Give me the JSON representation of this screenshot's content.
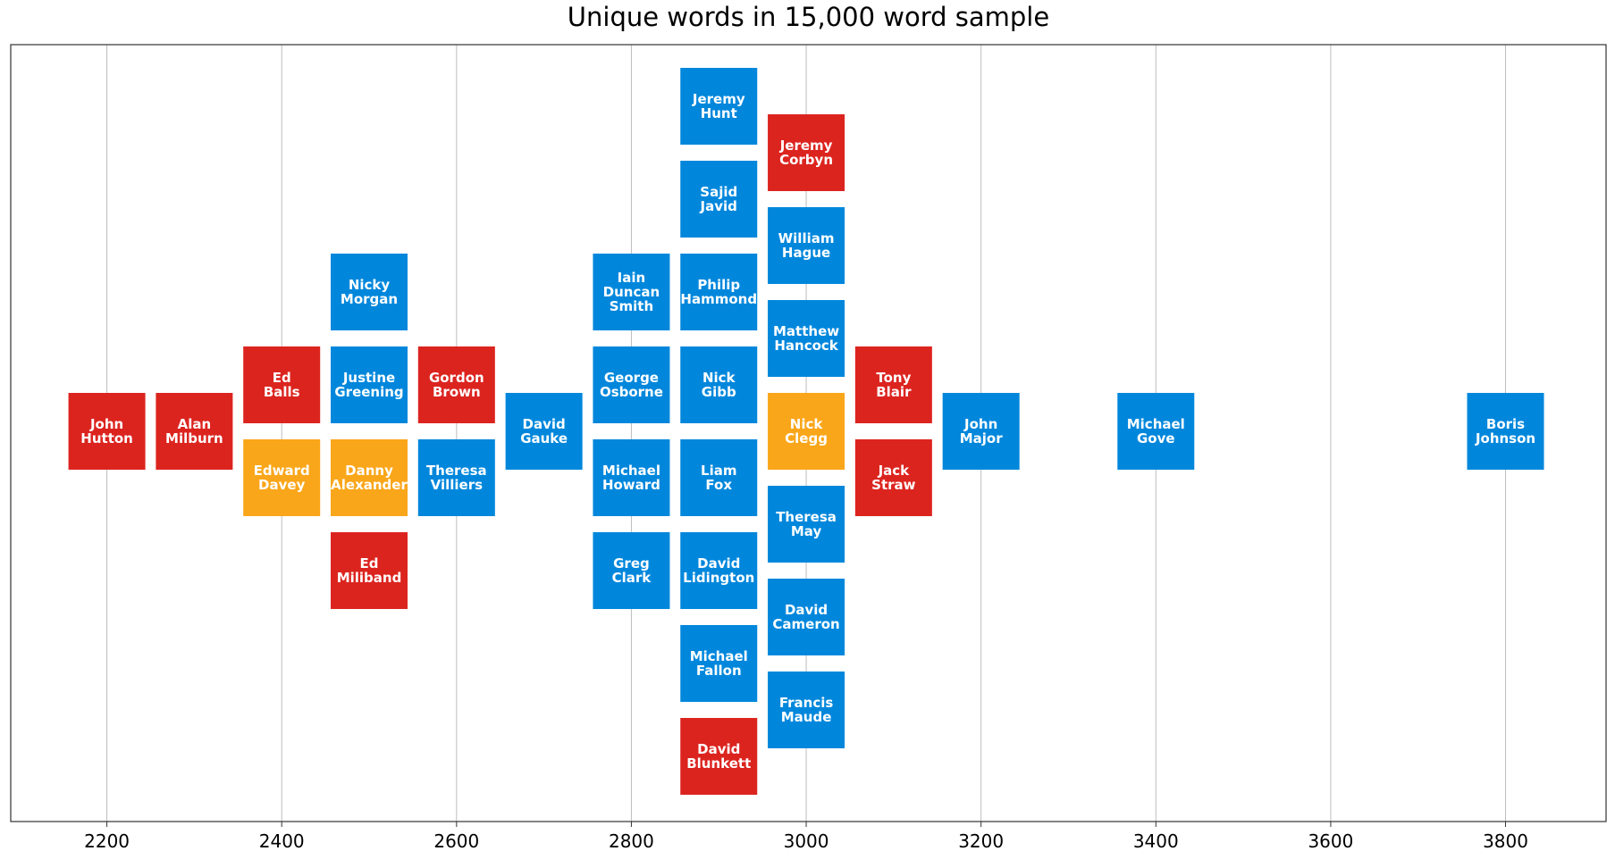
{
  "chart_data": {
    "type": "scatter",
    "title": "Unique words in 15,000 word sample",
    "xlabel": "",
    "ylabel": "",
    "xlim": [
      2090,
      3915
    ],
    "xticks": [
      2200,
      2400,
      2600,
      2800,
      3000,
      3200,
      3400,
      3600,
      3800
    ],
    "grid": "vertical",
    "colors": {
      "Labour": "#dc241f",
      "Conservative": "#0087dc",
      "Liberal Democrat": "#faa61a"
    },
    "points": [
      {
        "label": "John Hutton",
        "lines": [
          "John",
          "Hutton"
        ],
        "x": 2200,
        "party": "Labour"
      },
      {
        "label": "Alan Milburn",
        "lines": [
          "Alan",
          "Milburn"
        ],
        "x": 2300,
        "party": "Labour"
      },
      {
        "label": "Ed Balls",
        "lines": [
          "Ed",
          "Balls"
        ],
        "x": 2400,
        "party": "Labour"
      },
      {
        "label": "Edward Davey",
        "lines": [
          "Edward",
          "Davey"
        ],
        "x": 2400,
        "party": "Liberal Democrat"
      },
      {
        "label": "Nicky Morgan",
        "lines": [
          "Nicky",
          "Morgan"
        ],
        "x": 2500,
        "party": "Conservative"
      },
      {
        "label": "Justine Greening",
        "lines": [
          "Justine",
          "Greening"
        ],
        "x": 2500,
        "party": "Conservative"
      },
      {
        "label": "Danny Alexander",
        "lines": [
          "Danny",
          "Alexander"
        ],
        "x": 2500,
        "party": "Liberal Democrat"
      },
      {
        "label": "Ed Miliband",
        "lines": [
          "Ed",
          "Miliband"
        ],
        "x": 2500,
        "party": "Labour"
      },
      {
        "label": "Gordon Brown",
        "lines": [
          "Gordon",
          "Brown"
        ],
        "x": 2600,
        "party": "Labour"
      },
      {
        "label": "Theresa Villiers",
        "lines": [
          "Theresa",
          "Villiers"
        ],
        "x": 2600,
        "party": "Conservative"
      },
      {
        "label": "David Gauke",
        "lines": [
          "David",
          "Gauke"
        ],
        "x": 2700,
        "party": "Conservative"
      },
      {
        "label": "Iain Duncan Smith",
        "lines": [
          "Iain",
          "Duncan",
          "Smith"
        ],
        "x": 2800,
        "party": "Conservative"
      },
      {
        "label": "George Osborne",
        "lines": [
          "George",
          "Osborne"
        ],
        "x": 2800,
        "party": "Conservative"
      },
      {
        "label": "Michael Howard",
        "lines": [
          "Michael",
          "Howard"
        ],
        "x": 2800,
        "party": "Conservative"
      },
      {
        "label": "Greg Clark",
        "lines": [
          "Greg",
          "Clark"
        ],
        "x": 2800,
        "party": "Conservative"
      },
      {
        "label": "Jeremy Hunt",
        "lines": [
          "Jeremy",
          "Hunt"
        ],
        "x": 2900,
        "party": "Conservative"
      },
      {
        "label": "Sajid Javid",
        "lines": [
          "Sajid",
          "Javid"
        ],
        "x": 2900,
        "party": "Conservative"
      },
      {
        "label": "Philip Hammond",
        "lines": [
          "Philip",
          "Hammond"
        ],
        "x": 2900,
        "party": "Conservative"
      },
      {
        "label": "Nick Gibb",
        "lines": [
          "Nick",
          "Gibb"
        ],
        "x": 2900,
        "party": "Conservative"
      },
      {
        "label": "Liam Fox",
        "lines": [
          "Liam",
          "Fox"
        ],
        "x": 2900,
        "party": "Conservative"
      },
      {
        "label": "David Lidington",
        "lines": [
          "David",
          "Lidington"
        ],
        "x": 2900,
        "party": "Conservative"
      },
      {
        "label": "Michael Fallon",
        "lines": [
          "Michael",
          "Fallon"
        ],
        "x": 2900,
        "party": "Conservative"
      },
      {
        "label": "David Blunkett",
        "lines": [
          "David",
          "Blunkett"
        ],
        "x": 2900,
        "party": "Labour"
      },
      {
        "label": "Jeremy Corbyn",
        "lines": [
          "Jeremy",
          "Corbyn"
        ],
        "x": 3000,
        "party": "Labour"
      },
      {
        "label": "William Hague",
        "lines": [
          "William",
          "Hague"
        ],
        "x": 3000,
        "party": "Conservative"
      },
      {
        "label": "Matthew Hancock",
        "lines": [
          "Matthew",
          "Hancock"
        ],
        "x": 3000,
        "party": "Conservative"
      },
      {
        "label": "Nick Clegg",
        "lines": [
          "Nick",
          "Clegg"
        ],
        "x": 3000,
        "party": "Liberal Democrat"
      },
      {
        "label": "Theresa May",
        "lines": [
          "Theresa",
          "May"
        ],
        "x": 3000,
        "party": "Conservative"
      },
      {
        "label": "David Cameron",
        "lines": [
          "David",
          "Cameron"
        ],
        "x": 3000,
        "party": "Conservative"
      },
      {
        "label": "Francis Maude",
        "lines": [
          "Francis",
          "Maude"
        ],
        "x": 3000,
        "party": "Conservative"
      },
      {
        "label": "Tony Blair",
        "lines": [
          "Tony",
          "Blair"
        ],
        "x": 3100,
        "party": "Labour"
      },
      {
        "label": "Jack Straw",
        "lines": [
          "Jack",
          "Straw"
        ],
        "x": 3100,
        "party": "Labour"
      },
      {
        "label": "John Major",
        "lines": [
          "John",
          "Major"
        ],
        "x": 3200,
        "party": "Conservative"
      },
      {
        "label": "Michael Gove",
        "lines": [
          "Michael",
          "Gove"
        ],
        "x": 3400,
        "party": "Conservative"
      },
      {
        "label": "Boris Johnson",
        "lines": [
          "Boris",
          "Johnson"
        ],
        "x": 3800,
        "party": "Conservative"
      }
    ]
  }
}
